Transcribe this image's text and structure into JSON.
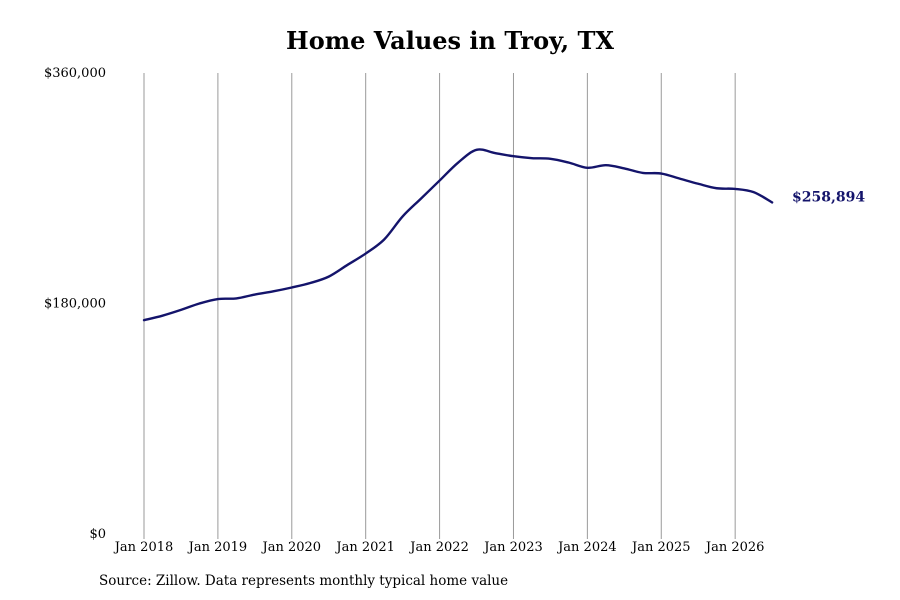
{
  "chart_data": {
    "type": "line",
    "title": "Home Values in Troy, TX",
    "xlabel": "",
    "ylabel": "",
    "ylim": [
      0,
      360000
    ],
    "yticks": [
      {
        "value": 0,
        "label": "$0"
      },
      {
        "value": 180000,
        "label": "$180,000"
      },
      {
        "value": 360000,
        "label": "$360,000"
      }
    ],
    "xlim": [
      2018.0,
      2026.6
    ],
    "xticks": [
      {
        "value": 2018,
        "label": "Jan 2018"
      },
      {
        "value": 2019,
        "label": "Jan 2019"
      },
      {
        "value": 2020,
        "label": "Jan 2020"
      },
      {
        "value": 2021,
        "label": "Jan 2021"
      },
      {
        "value": 2022,
        "label": "Jan 2022"
      },
      {
        "value": 2023,
        "label": "Jan 2023"
      },
      {
        "value": 2024,
        "label": "Jan 2024"
      },
      {
        "value": 2025,
        "label": "Jan 2025"
      },
      {
        "value": 2026,
        "label": "Jan 2026"
      }
    ],
    "grid": "vertical",
    "legend": "none",
    "line_color": "#14146b",
    "end_label": "$258,894",
    "series": [
      {
        "x": [
          2018.0,
          2018.25,
          2018.5,
          2018.75,
          2019.0,
          2019.25,
          2019.5,
          2019.75,
          2020.0,
          2020.25,
          2020.5,
          2020.75,
          2021.0,
          2021.25,
          2021.5,
          2021.75,
          2022.0,
          2022.25,
          2022.5,
          2022.75,
          2023.0,
          2023.25,
          2023.5,
          2023.75,
          2024.0,
          2024.25,
          2024.5,
          2024.75,
          2025.0,
          2025.25,
          2025.5,
          2025.75,
          2026.0,
          2026.25,
          2026.5
        ],
        "y": [
          167000,
          170500,
          175000,
          180000,
          183500,
          184000,
          187000,
          189500,
          192500,
          196000,
          201000,
          210000,
          219000,
          230000,
          248000,
          262000,
          276000,
          290000,
          300000,
          297500,
          295000,
          293500,
          293000,
          290000,
          286000,
          288000,
          285500,
          282000,
          281500,
          277500,
          273500,
          270000,
          269500,
          267000,
          258894
        ]
      }
    ]
  },
  "footer": {
    "source": "Source: Zillow. Data represents monthly typical home value"
  }
}
